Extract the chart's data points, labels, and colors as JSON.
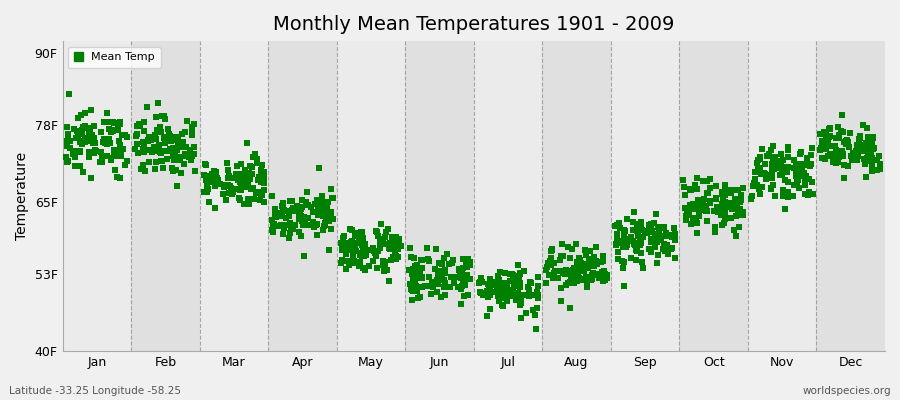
{
  "title": "Monthly Mean Temperatures 1901 - 2009",
  "ylabel": "Temperature",
  "subtitle_left": "Latitude -33.25 Longitude -58.25",
  "subtitle_right": "worldspecies.org",
  "legend_label": "Mean Temp",
  "yticks": [
    40,
    53,
    65,
    78,
    90
  ],
  "ytick_labels": [
    "40F",
    "53F",
    "65F",
    "78F",
    "90F"
  ],
  "ylim": [
    40,
    92
  ],
  "months": [
    "Jan",
    "Feb",
    "Mar",
    "Apr",
    "May",
    "Jun",
    "Jul",
    "Aug",
    "Sep",
    "Oct",
    "Nov",
    "Dec"
  ],
  "month_mean_temps_F": [
    75.0,
    74.5,
    68.5,
    63.0,
    57.0,
    52.5,
    50.5,
    53.5,
    58.5,
    64.5,
    70.0,
    74.0
  ],
  "month_std_F": [
    2.5,
    2.5,
    2.0,
    2.0,
    2.0,
    2.0,
    2.0,
    2.0,
    2.0,
    2.0,
    2.0,
    2.0
  ],
  "n_years": 109,
  "start_year": 1901,
  "marker_color": "#008000",
  "marker_size": 4,
  "bg_color": "#f0f0f0",
  "band_color_odd": "#ebebeb",
  "band_color_even": "#e0e0e0",
  "dashed_line_color": "#888888",
  "title_fontsize": 14,
  "axis_fontsize": 9,
  "ylabel_fontsize": 10
}
